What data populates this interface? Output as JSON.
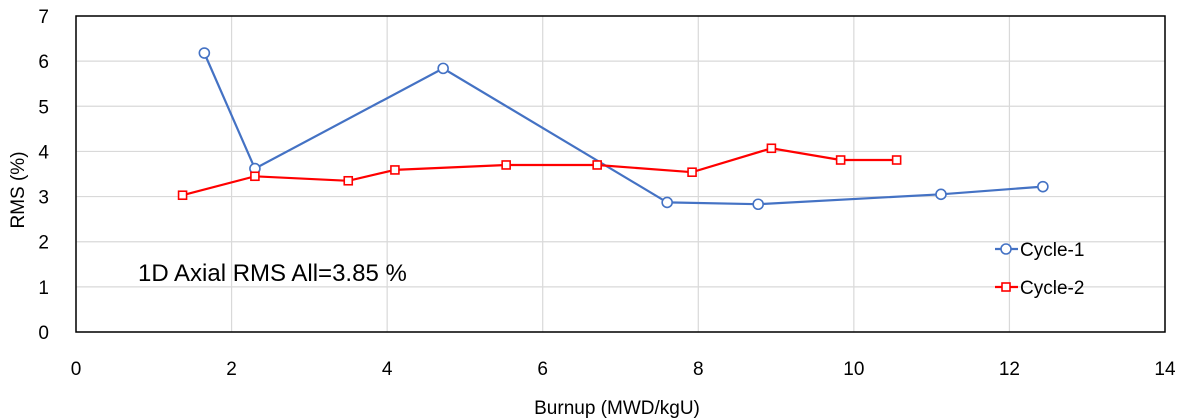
{
  "chart_data": {
    "type": "line",
    "xlabel": "Burnup (MWD/kgU)",
    "ylabel": "RMS (%)",
    "xlim": [
      0,
      14
    ],
    "ylim": [
      0,
      7
    ],
    "xticks": [
      0,
      2,
      4,
      6,
      8,
      10,
      12,
      14
    ],
    "yticks": [
      0,
      1,
      2,
      3,
      4,
      5,
      6,
      7
    ],
    "grid": true,
    "legend_position": "bottom-right",
    "annotation": "1D Axial RMS All=3.85 %",
    "series": [
      {
        "name": "Cycle-1",
        "color": "#4472C4",
        "marker": "circle",
        "x": [
          1.65,
          2.3,
          4.72,
          7.6,
          8.77,
          11.12,
          12.43
        ],
        "y": [
          6.18,
          3.62,
          5.84,
          2.87,
          2.83,
          3.05,
          3.22
        ]
      },
      {
        "name": "Cycle-2",
        "color": "#FF0000",
        "marker": "square",
        "x": [
          1.37,
          2.3,
          3.5,
          4.1,
          5.53,
          6.7,
          7.92,
          8.94,
          9.83,
          10.55
        ],
        "y": [
          3.03,
          3.45,
          3.35,
          3.59,
          3.7,
          3.7,
          3.54,
          4.07,
          3.81,
          3.81
        ]
      }
    ]
  }
}
